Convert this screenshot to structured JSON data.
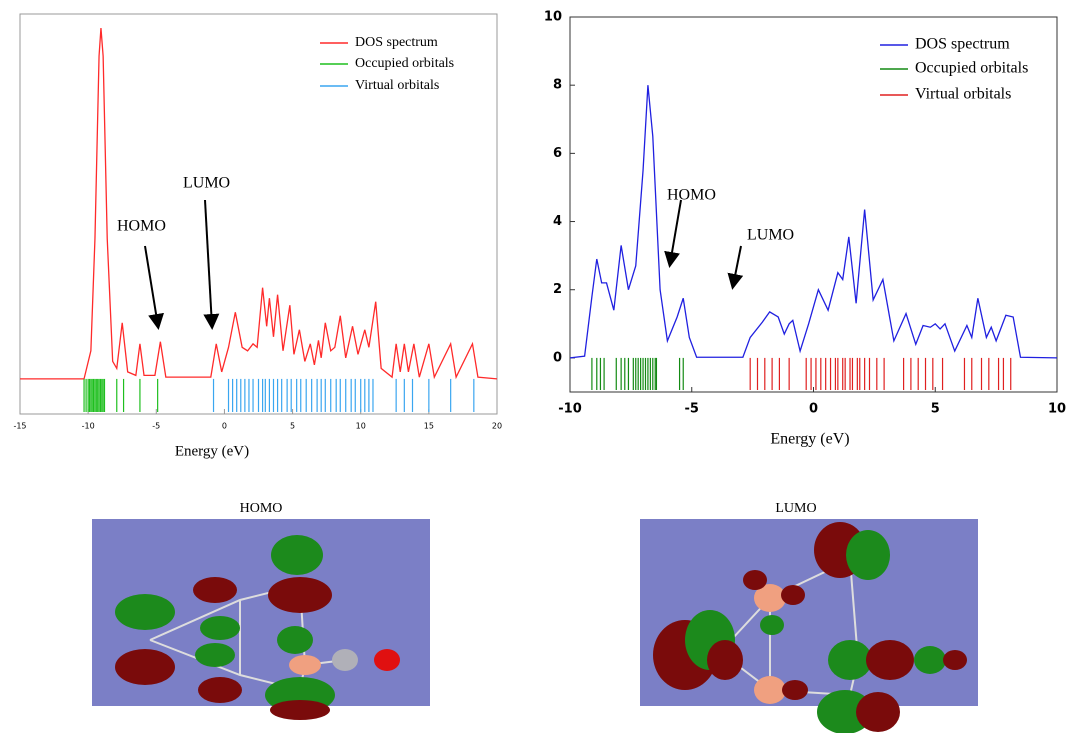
{
  "chart_data": [
    {
      "type": "line",
      "x_label": "Energy (eV)",
      "xlim": [
        -15,
        20
      ],
      "xticks": [
        -15,
        -10,
        -5,
        0,
        5,
        10,
        15,
        20
      ],
      "ylim": [
        -1,
        10.4
      ],
      "series": [
        {
          "name": "DOS spectrum",
          "color": "#ff2a2a",
          "x": [
            -15,
            -10.3,
            -9.8,
            -9.5,
            -9.2,
            -9.06,
            -8.9,
            -8.6,
            -8.2,
            -7.9,
            -7.5,
            -7.1,
            -6.5,
            -6.2,
            -5.9,
            -5.1,
            -4.7,
            -4.3,
            -1.0,
            -0.6,
            -0.2,
            0.3,
            0.8,
            1.3,
            1.7,
            2.1,
            2.4,
            2.8,
            3.1,
            3.3,
            3.6,
            3.9,
            4.3,
            4.8,
            5.1,
            5.5,
            5.9,
            6.3,
            6.6,
            6.9,
            7.1,
            7.4,
            7.8,
            8.1,
            8.5,
            8.9,
            9.4,
            9.8,
            10.3,
            10.6,
            11.1,
            11.5,
            12.3,
            12.6,
            12.9,
            13.2,
            13.5,
            13.9,
            14.3,
            15.0,
            15.4,
            16.6,
            17.0,
            18.2,
            18.6,
            20
          ],
          "values": [
            0,
            0,
            0.8,
            4,
            9.2,
            10.0,
            9.2,
            4,
            0.5,
            0.3,
            1.6,
            0.2,
            0.1,
            1.0,
            0.1,
            0.1,
            1.06,
            0.05,
            0.05,
            1.0,
            0.2,
            0.9,
            1.9,
            0.9,
            0.8,
            1.0,
            0.9,
            2.6,
            1.5,
            2.3,
            1.2,
            2.4,
            0.8,
            2.1,
            0.7,
            1.4,
            0.5,
            1.0,
            0.4,
            1.1,
            0.6,
            1.6,
            0.8,
            0.9,
            1.8,
            0.6,
            1.5,
            0.7,
            1.4,
            0.9,
            2.2,
            0.3,
            0.05,
            1.0,
            0.2,
            1.0,
            0.2,
            1.0,
            0.05,
            1.0,
            0.05,
            1.0,
            0.05,
            1.0,
            0.05,
            0
          ]
        },
        {
          "name": "Occupied orbitals",
          "color": "#1fbf1f",
          "x": [
            -10.3,
            -10.15,
            -10.0,
            -9.9,
            -9.8,
            -9.7,
            -9.6,
            -9.5,
            -9.4,
            -9.3,
            -9.2,
            -9.1,
            -9.0,
            -8.9,
            -8.8,
            -7.9,
            -7.4,
            -6.2,
            -4.9
          ]
        },
        {
          "name": "Virtual orbitals",
          "color": "#3aa6f0",
          "x": [
            -0.8,
            0.3,
            0.6,
            0.9,
            1.2,
            1.5,
            1.8,
            2.1,
            2.5,
            2.8,
            3.0,
            3.3,
            3.6,
            3.9,
            4.2,
            4.6,
            4.9,
            5.3,
            5.6,
            6.0,
            6.4,
            6.8,
            7.1,
            7.4,
            7.8,
            8.2,
            8.5,
            8.9,
            9.3,
            9.6,
            10.0,
            10.3,
            10.6,
            10.9,
            12.6,
            13.2,
            13.8,
            15.0,
            16.6,
            18.3
          ]
        }
      ],
      "annotations": [
        {
          "text": "HOMO"
        },
        {
          "text": "LUMO"
        }
      ]
    },
    {
      "type": "line",
      "x_label": "Energy (eV)",
      "xlim": [
        -10,
        10
      ],
      "xticks": [
        -10,
        -5,
        0,
        5,
        10
      ],
      "ylim": [
        -1,
        10
      ],
      "yticks": [
        0,
        2,
        4,
        6,
        8,
        10
      ],
      "series": [
        {
          "name": "DOS spectrum",
          "color": "#2020e0",
          "x": [
            -10,
            -9.4,
            -9.1,
            -8.9,
            -8.7,
            -8.5,
            -8.2,
            -7.9,
            -7.6,
            -7.3,
            -7.0,
            -6.8,
            -6.6,
            -6.3,
            -6.0,
            -5.6,
            -5.35,
            -5.1,
            -4.8,
            -2.9,
            -2.6,
            -2.1,
            -1.8,
            -1.45,
            -1.2,
            -1.0,
            -0.85,
            -0.55,
            -0.2,
            0.2,
            0.6,
            1.0,
            1.2,
            1.45,
            1.75,
            2.1,
            2.45,
            2.85,
            3.3,
            3.8,
            4.2,
            4.5,
            4.8,
            5.0,
            5.2,
            5.4,
            5.8,
            6.3,
            6.5,
            6.75,
            7.1,
            7.3,
            7.5,
            7.9,
            8.2,
            8.5,
            10
          ],
          "values": [
            0,
            0.05,
            1.8,
            2.9,
            2.2,
            2.2,
            1.4,
            3.3,
            2.0,
            2.7,
            5.5,
            8.0,
            6.5,
            2.0,
            0.5,
            1.2,
            1.75,
            0.6,
            0.02,
            0.02,
            0.6,
            1.05,
            1.35,
            1.2,
            0.7,
            1.0,
            1.1,
            0.2,
            1.0,
            2.0,
            1.4,
            2.5,
            2.3,
            3.55,
            1.6,
            4.35,
            1.7,
            2.3,
            0.5,
            1.3,
            0.4,
            0.95,
            0.9,
            1.0,
            0.85,
            1.0,
            0.2,
            0.95,
            0.6,
            1.75,
            0.6,
            0.9,
            0.5,
            1.25,
            1.2,
            0.02,
            0
          ]
        },
        {
          "name": "Occupied orbitals",
          "color": "#138a13",
          "x": [
            -9.1,
            -8.9,
            -8.75,
            -8.6,
            -8.1,
            -7.9,
            -7.75,
            -7.6,
            -7.4,
            -7.3,
            -7.2,
            -7.1,
            -7.0,
            -6.9,
            -6.8,
            -6.7,
            -6.6,
            -6.5,
            -6.45,
            -5.5,
            -5.35
          ]
        },
        {
          "name": "Virtual orbitals",
          "color": "#e02020",
          "x": [
            -2.6,
            -2.3,
            -2.0,
            -1.7,
            -1.4,
            -1.0,
            -0.3,
            -0.1,
            0.1,
            0.3,
            0.5,
            0.7,
            0.9,
            1.0,
            1.2,
            1.3,
            1.5,
            1.6,
            1.8,
            1.9,
            2.1,
            2.3,
            2.6,
            2.9,
            3.7,
            4.0,
            4.3,
            4.6,
            4.9,
            5.3,
            6.2,
            6.5,
            6.9,
            7.2,
            7.6,
            7.8,
            8.1
          ]
        }
      ],
      "annotations": [
        {
          "text": "HOMO"
        },
        {
          "text": "LUMO"
        }
      ]
    }
  ],
  "figures": [
    {
      "caption": "HOMO"
    },
    {
      "caption": "LUMO"
    }
  ]
}
